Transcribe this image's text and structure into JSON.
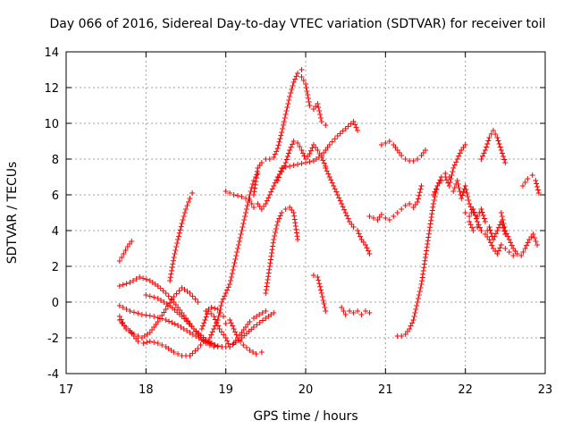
{
  "chart_data": {
    "type": "scatter",
    "title": "Day 066 of 2016, Sidereal Day-to-day VTEC variation (SDTVAR) for receiver toil",
    "xlabel": "GPS time / hours",
    "ylabel": "SDTVAR / TECUs",
    "xlim": [
      17,
      23
    ],
    "ylim": [
      -4,
      14
    ],
    "xticks": [
      17,
      18,
      19,
      20,
      21,
      22,
      23
    ],
    "yticks": [
      -4,
      -2,
      0,
      2,
      4,
      6,
      8,
      10,
      12,
      14
    ],
    "grid": true,
    "marker": "+",
    "color": "#ff0000",
    "series": [
      {
        "name": "s1",
        "x": [
          17.67,
          17.72,
          17.77,
          17.82
        ],
        "y": [
          2.3,
          2.7,
          3.1,
          3.4
        ]
      },
      {
        "name": "s2",
        "x": [
          17.67,
          17.8,
          17.92,
          18.05,
          18.15,
          18.25,
          18.35,
          18.45,
          18.55,
          18.65,
          18.75,
          18.85
        ],
        "y": [
          0.9,
          1.1,
          1.4,
          1.2,
          0.9,
          0.5,
          0.0,
          -0.6,
          -1.2,
          -1.8,
          -2.3,
          -2.5
        ]
      },
      {
        "name": "s3",
        "x": [
          17.67,
          17.8,
          17.95,
          18.1,
          18.25,
          18.4,
          18.55,
          18.7,
          18.85,
          18.95
        ],
        "y": [
          -0.2,
          -0.5,
          -0.7,
          -0.8,
          -1.0,
          -1.3,
          -1.7,
          -2.1,
          -2.4,
          -2.5
        ]
      },
      {
        "name": "s4",
        "x": [
          17.67,
          17.75,
          17.85,
          17.95,
          18.05,
          18.15,
          18.25,
          18.35,
          18.45,
          18.55,
          18.65
        ],
        "y": [
          -0.8,
          -1.5,
          -1.8,
          -2.0,
          -1.7,
          -1.1,
          -0.4,
          0.3,
          0.8,
          0.5,
          0.0
        ]
      },
      {
        "name": "s5",
        "x": [
          17.67,
          17.7,
          17.75,
          17.8,
          17.85,
          17.9,
          17.97,
          18.05,
          18.15,
          18.25,
          18.35,
          18.45,
          18.55,
          18.65,
          18.72
        ],
        "y": [
          -1.0,
          -1.2,
          -1.4,
          -1.6,
          -1.9,
          -2.2,
          -2.3,
          -2.2,
          -2.3,
          -2.5,
          -2.8,
          -3.0,
          -3.0,
          -2.6,
          -2.2
        ]
      },
      {
        "name": "s6",
        "x": [
          18.0,
          18.15,
          18.3,
          18.45,
          18.6,
          18.75,
          18.9,
          19.05,
          19.2,
          19.35,
          19.5,
          19.6
        ],
        "y": [
          0.4,
          0.2,
          -0.2,
          -0.8,
          -1.5,
          -2.1,
          -2.5,
          -2.5,
          -2.0,
          -1.4,
          -0.9,
          -0.6
        ]
      },
      {
        "name": "s7",
        "x": [
          18.3,
          18.35,
          18.4,
          18.45,
          18.5,
          18.55,
          18.58
        ],
        "y": [
          1.2,
          2.5,
          3.5,
          4.4,
          5.2,
          5.8,
          6.1
        ]
      },
      {
        "name": "s8",
        "x": [
          18.7,
          18.78,
          18.85,
          18.92,
          19.0,
          19.05,
          19.1,
          19.15,
          19.2,
          19.25,
          19.3,
          19.35,
          19.42,
          19.5
        ],
        "y": [
          -1.5,
          -0.5,
          -0.8,
          -1.5,
          -2.0,
          -2.5,
          -2.3,
          -2.0,
          -1.7,
          -1.4,
          -1.1,
          -0.9,
          -0.7,
          -0.5
        ]
      },
      {
        "name": "s9",
        "x": [
          18.75,
          18.82,
          18.9,
          18.97
        ],
        "y": [
          -0.5,
          -0.3,
          -0.4,
          -0.8
        ]
      },
      {
        "name": "s10",
        "x": [
          19.0,
          19.05,
          19.1,
          19.15,
          19.22,
          19.3,
          19.38,
          19.45
        ],
        "y": [
          -1.2,
          -1.0,
          -1.5,
          -2.0,
          -2.4,
          -2.7,
          -2.9,
          -2.8
        ]
      },
      {
        "name": "s11",
        "x": [
          18.8,
          18.85,
          18.9,
          18.95,
          19.0,
          19.05,
          19.1,
          19.15,
          19.2,
          19.25,
          19.3,
          19.35,
          19.4
        ],
        "y": [
          -2.0,
          -1.5,
          -1.0,
          0.0,
          0.5,
          1.0,
          2.0,
          3.0,
          4.0,
          5.0,
          6.0,
          6.8,
          7.2
        ]
      },
      {
        "name": "s12",
        "x": [
          19.0,
          19.1,
          19.2,
          19.3,
          19.35
        ],
        "y": [
          6.2,
          6.0,
          5.9,
          5.7,
          5.3
        ]
      },
      {
        "name": "s13",
        "x": [
          19.35,
          19.4,
          19.45,
          19.5,
          19.55,
          19.6,
          19.65,
          19.7,
          19.75,
          19.8,
          19.85,
          19.9,
          19.95
        ],
        "y": [
          6.0,
          7.5,
          7.8,
          8.0,
          8.0,
          8.1,
          8.6,
          9.5,
          10.5,
          11.5,
          12.3,
          12.8,
          13.0
        ]
      },
      {
        "name": "s14",
        "x": [
          19.95,
          20.0,
          20.05,
          20.1,
          20.15,
          20.2,
          20.25
        ],
        "y": [
          12.6,
          12.2,
          11.0,
          10.8,
          11.1,
          10.1,
          9.9
        ]
      },
      {
        "name": "s15",
        "x": [
          19.4,
          19.45,
          19.5,
          19.55,
          19.6,
          19.65,
          19.7,
          19.75,
          19.8,
          19.85,
          19.9,
          19.95,
          20.0,
          20.05,
          20.1,
          20.15,
          20.2,
          20.25
        ],
        "y": [
          5.5,
          5.2,
          5.5,
          6.0,
          6.5,
          7.0,
          7.3,
          7.8,
          8.5,
          9.0,
          8.9,
          8.5,
          8.0,
          8.3,
          8.8,
          8.5,
          8.1,
          7.6
        ]
      },
      {
        "name": "s16",
        "x": [
          19.5,
          19.55,
          19.6,
          19.65,
          19.7,
          19.75,
          19.8,
          19.85,
          19.9
        ],
        "y": [
          0.5,
          2.0,
          3.5,
          4.5,
          5.0,
          5.2,
          5.3,
          5.0,
          3.5
        ]
      },
      {
        "name": "s17",
        "x": [
          19.65,
          19.7,
          19.8,
          19.9,
          20.0,
          20.1,
          20.2,
          20.3,
          20.4,
          20.5,
          20.6,
          20.65
        ],
        "y": [
          6.8,
          7.5,
          7.6,
          7.7,
          7.8,
          7.9,
          8.2,
          8.8,
          9.3,
          9.7,
          10.1,
          9.6
        ]
      },
      {
        "name": "s18",
        "x": [
          20.25,
          20.3,
          20.35,
          20.4,
          20.45,
          20.5,
          20.55,
          20.6,
          20.65,
          20.7,
          20.75,
          20.8
        ],
        "y": [
          7.5,
          7.0,
          6.5,
          6.0,
          5.5,
          5.0,
          4.5,
          4.2,
          4.0,
          3.5,
          3.2,
          2.7
        ]
      },
      {
        "name": "s19",
        "x": [
          20.1,
          20.15,
          20.2,
          20.25
        ],
        "y": [
          1.5,
          1.4,
          0.5,
          -0.5
        ]
      },
      {
        "name": "s20",
        "x": [
          20.45,
          20.5,
          20.55,
          20.6,
          20.65,
          20.7,
          20.75,
          20.8
        ],
        "y": [
          -0.3,
          -0.7,
          -0.5,
          -0.6,
          -0.5,
          -0.7,
          -0.5,
          -0.6
        ]
      },
      {
        "name": "s21",
        "x": [
          20.8,
          20.85,
          20.9,
          20.95,
          21.0,
          21.05,
          21.1,
          21.15,
          21.2,
          21.25,
          21.3,
          21.35,
          21.4,
          21.45
        ],
        "y": [
          4.8,
          4.7,
          4.6,
          4.9,
          4.7,
          4.6,
          4.8,
          5.0,
          5.2,
          5.4,
          5.5,
          5.3,
          5.6,
          6.5
        ]
      },
      {
        "name": "s22",
        "x": [
          20.95,
          21.0,
          21.05,
          21.1,
          21.15,
          21.2,
          21.25,
          21.3,
          21.35,
          21.4,
          21.45,
          21.5
        ],
        "y": [
          8.8,
          8.9,
          9.0,
          8.8,
          8.5,
          8.2,
          8.0,
          7.9,
          7.9,
          8.0,
          8.2,
          8.5
        ]
      },
      {
        "name": "s23",
        "x": [
          21.15,
          21.2,
          21.25,
          21.3,
          21.35,
          21.4,
          21.45,
          21.5,
          21.55,
          21.6,
          21.65,
          21.7,
          21.75,
          21.8
        ],
        "y": [
          -1.9,
          -1.9,
          -1.8,
          -1.5,
          -1.0,
          0.0,
          1.0,
          2.5,
          4.0,
          5.5,
          6.5,
          7.0,
          7.2,
          7.0
        ]
      },
      {
        "name": "s24",
        "x": [
          21.6,
          21.65,
          21.7,
          21.75,
          21.8,
          21.85,
          21.9,
          21.95,
          22.0
        ],
        "y": [
          6.0,
          6.5,
          6.8,
          7.0,
          6.5,
          7.5,
          8.0,
          8.5,
          8.8
        ]
      },
      {
        "name": "s25",
        "x": [
          21.85,
          21.9,
          21.95,
          22.0,
          22.05,
          22.1,
          22.15,
          22.2,
          22.25
        ],
        "y": [
          6.2,
          6.8,
          5.8,
          6.5,
          5.5,
          5.0,
          4.8,
          5.2,
          4.5
        ]
      },
      {
        "name": "s26",
        "x": [
          22.05,
          22.1,
          22.15,
          22.2,
          22.25,
          22.3,
          22.35,
          22.4,
          22.45,
          22.5,
          22.55,
          22.6
        ],
        "y": [
          4.5,
          4.0,
          4.2,
          4.0,
          3.8,
          3.5,
          3.0,
          2.7,
          3.2,
          3.0,
          2.8,
          2.6
        ]
      },
      {
        "name": "s27",
        "x": [
          22.0,
          22.05,
          22.1,
          22.15,
          22.2,
          22.25,
          22.3,
          22.35,
          22.4,
          22.45,
          22.5
        ],
        "y": [
          5.0,
          4.8,
          5.2,
          4.5,
          4.0,
          3.8,
          4.2,
          3.5,
          4.0,
          4.5,
          3.8
        ]
      },
      {
        "name": "s28",
        "x": [
          22.2,
          22.25,
          22.3,
          22.35,
          22.4,
          22.45,
          22.5
        ],
        "y": [
          8.0,
          8.5,
          9.2,
          9.6,
          9.2,
          8.5,
          7.8
        ]
      },
      {
        "name": "s29",
        "x": [
          22.45,
          22.5,
          22.55,
          22.6,
          22.65,
          22.7,
          22.75,
          22.8,
          22.85,
          22.9
        ],
        "y": [
          5.0,
          4.0,
          3.5,
          3.0,
          2.7,
          2.6,
          3.0,
          3.5,
          3.8,
          3.2
        ]
      },
      {
        "name": "s30",
        "x": [
          22.72,
          22.78,
          22.84,
          22.88,
          22.92
        ],
        "y": [
          6.5,
          6.9,
          7.1,
          6.8,
          6.1
        ]
      }
    ]
  }
}
